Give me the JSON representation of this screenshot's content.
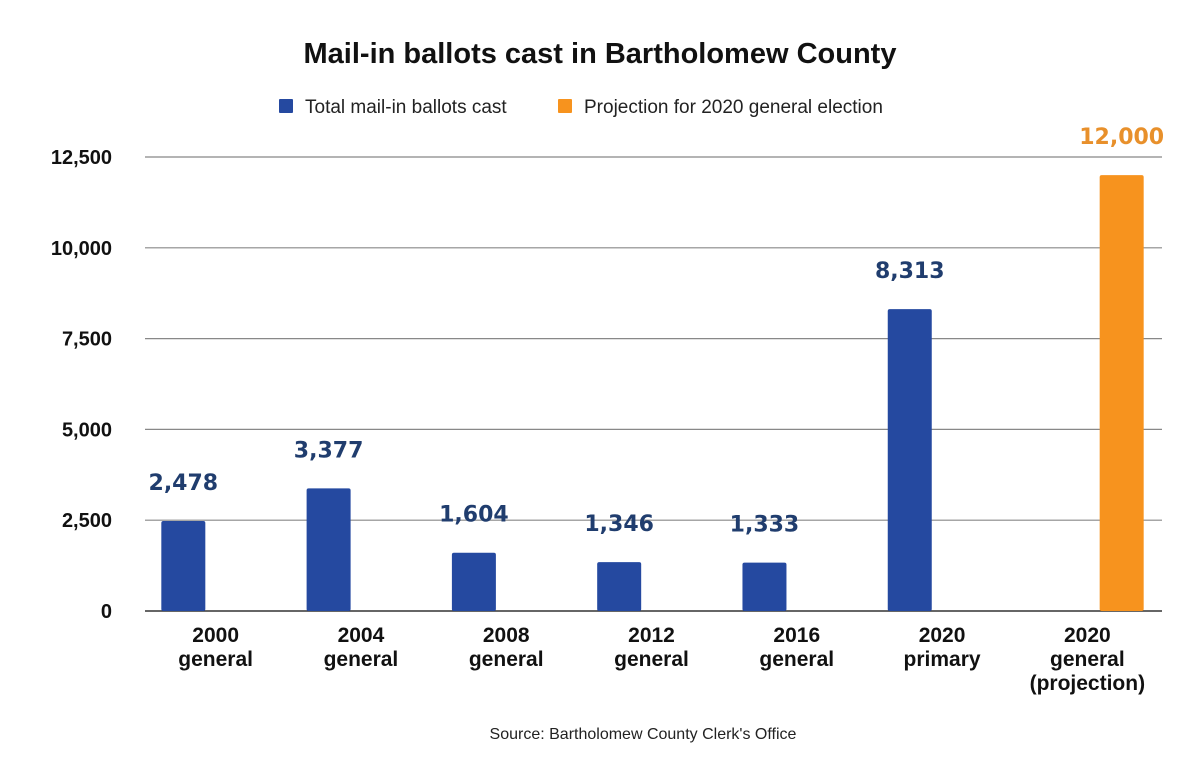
{
  "chart_data": {
    "type": "bar",
    "title": "Mail-in ballots cast in Bartholomew County",
    "categories": [
      [
        "2000",
        "general"
      ],
      [
        "2004",
        "general"
      ],
      [
        "2008",
        "general"
      ],
      [
        "2012",
        "general"
      ],
      [
        "2016",
        "general"
      ],
      [
        "2020",
        "primary"
      ],
      [
        "2020",
        "general",
        "(projection)"
      ]
    ],
    "series": [
      {
        "name": "Total mail-in ballots cast",
        "color": "#2549a0",
        "label_color": "#203d6e",
        "values": [
          2478,
          3377,
          1604,
          1346,
          1333,
          8313,
          null
        ],
        "data_labels": [
          "2,478",
          "3,377",
          "1,604",
          "1,346",
          "1,333",
          "8,313",
          null
        ]
      },
      {
        "name": "Projection for 2020 general election",
        "color": "#f7931e",
        "label_color": "#e8902b",
        "values": [
          null,
          null,
          null,
          null,
          null,
          null,
          12000
        ],
        "data_labels": [
          null,
          null,
          null,
          null,
          null,
          null,
          "12,000"
        ]
      }
    ],
    "xlabel": "",
    "ylabel": "",
    "ylim": [
      0,
      12500
    ],
    "yticks": [
      0,
      2500,
      5000,
      7500,
      10000,
      12500
    ],
    "ytick_labels": [
      "0",
      "2,500",
      "5,000",
      "7,500",
      "10,000",
      "12,500"
    ],
    "grid": true,
    "legend_position": "top",
    "source": "Source: Bartholomew County Clerk's Office"
  }
}
